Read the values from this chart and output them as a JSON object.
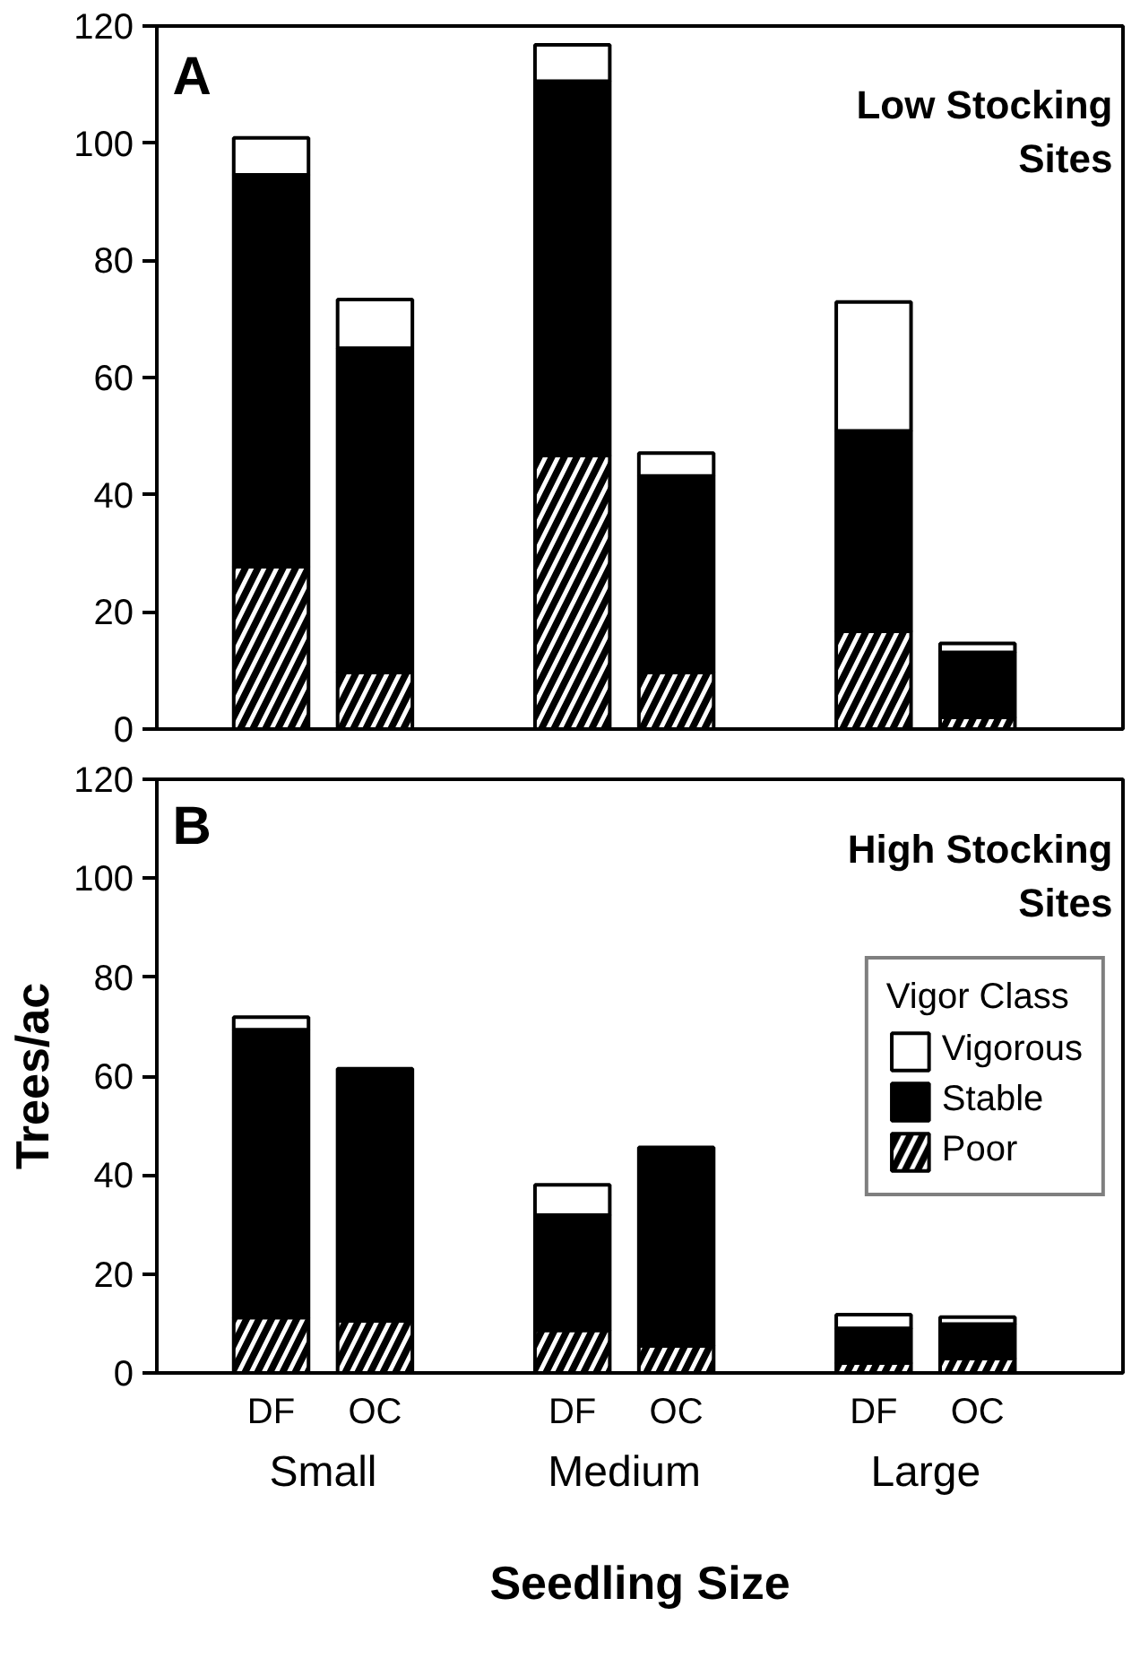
{
  "chart_data": [
    {
      "type": "bar",
      "stacked": true,
      "title": "A",
      "subtitle": "Low Stocking Sites",
      "categories": [
        null,
        null,
        null,
        null,
        null,
        null
      ],
      "ylim": [
        0,
        120
      ],
      "yticks": [
        0,
        20,
        40,
        60,
        80,
        100,
        120
      ],
      "grid": false,
      "legend": false,
      "tick_labels": "y",
      "series": [
        {
          "color": "#000000",
          "values": [
            27.7,
            9.7,
            46.7,
            9.7,
            16.7,
            2
          ]
        },
        {
          "color": "#000000",
          "values": [
            66.9,
            55.3,
            63.9,
            33.5,
            34.2,
            11.1
          ]
        },
        {
          "color": "#ffffff",
          "values": [
            6.3,
            8.3,
            6.2,
            3.9,
            22,
            1.5
          ]
        }
      ]
    },
    {
      "type": "bar",
      "stacked": true,
      "title": "B",
      "subtitle": "High Stocking Sites",
      "ylabel": "Trees/ac",
      "xlabel": "Seedling Size",
      "legend_title": "Vigor Class",
      "annotations": [
        "Small",
        "Medium",
        "Large"
      ],
      "categories": [
        "DF",
        "OC",
        "DF",
        "OC",
        "DF",
        "OC"
      ],
      "ylim": [
        0,
        120
      ],
      "yticks": [
        0,
        20,
        40,
        60,
        80,
        100,
        120
      ],
      "grid": false,
      "legend": "right",
      "series": [
        {
          "name": "Poor",
          "color": "#000000",
          "values": [
            11.2,
            10.5,
            8.6,
            5.5,
            2,
            2.9
          ]
        },
        {
          "name": "Stable",
          "color": "#000000",
          "values": [
            58.2,
            51,
            23.3,
            40.1,
            7,
            7
          ]
        },
        {
          "name": "Vigorous",
          "color": "#ffffff",
          "values": [
            2.5,
            0,
            6.1,
            0,
            2.8,
            1.4
          ]
        }
      ]
    }
  ]
}
